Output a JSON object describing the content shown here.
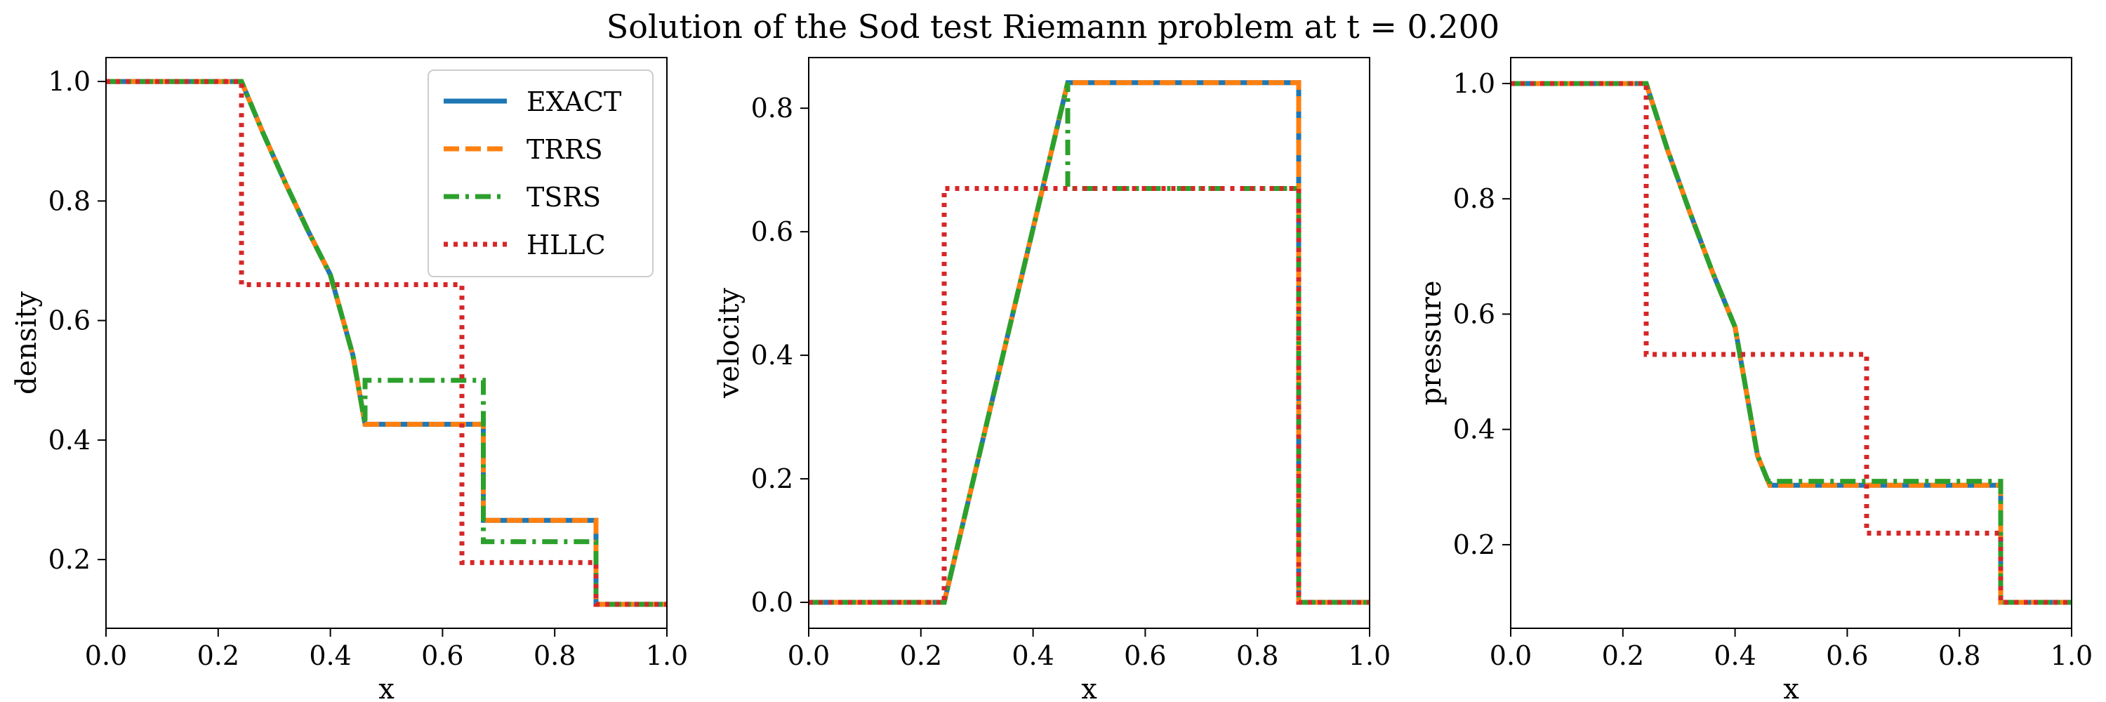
{
  "figure": {
    "title": "Solution of the Sod test Riemann problem at t = 0.200"
  },
  "chart_data": [
    {
      "type": "line",
      "xlabel": "x",
      "ylabel": "density",
      "xlim": [
        0.0,
        1.0
      ],
      "ylim": [
        0.085,
        1.04
      ],
      "xticks": [
        "0.0",
        "0.2",
        "0.4",
        "0.6",
        "0.8",
        "1.0"
      ],
      "yticks": [
        "0.2",
        "0.4",
        "0.6",
        "0.8",
        "1.0"
      ],
      "legend": {
        "location": "upper right",
        "entries": [
          "EXACT",
          "TRRS",
          "TSRS",
          "HLLC"
        ]
      },
      "grid": false,
      "series": [
        {
          "name": "EXACT",
          "color": "#1f77b4",
          "style": "solid",
          "x": [
            0.0,
            0.2415,
            0.28,
            0.32,
            0.36,
            0.4,
            0.44,
            0.4618,
            0.6727,
            0.6727,
            0.8736,
            0.8736,
            1.0
          ],
          "y": [
            1.0,
            1.0,
            0.9139,
            0.8297,
            0.7506,
            0.6766,
            0.5425,
            0.4263,
            0.4263,
            0.2656,
            0.2656,
            0.125,
            0.125
          ]
        },
        {
          "name": "TRRS",
          "color": "#ff7f0e",
          "style": "dashed",
          "x": [
            0.0,
            0.2415,
            0.28,
            0.32,
            0.36,
            0.4,
            0.44,
            0.4618,
            0.6727,
            0.6727,
            0.8736,
            0.8736,
            1.0
          ],
          "y": [
            1.0,
            1.0,
            0.9139,
            0.8297,
            0.7506,
            0.6766,
            0.5425,
            0.4263,
            0.4263,
            0.2656,
            0.2656,
            0.125,
            0.125
          ]
        },
        {
          "name": "TSRS",
          "color": "#2ca02c",
          "style": "dashdot",
          "x": [
            0.0,
            0.2415,
            0.28,
            0.32,
            0.36,
            0.4,
            0.44,
            0.4618,
            0.4618,
            0.6727,
            0.6727,
            0.8736,
            0.8736,
            1.0
          ],
          "y": [
            1.0,
            1.0,
            0.9139,
            0.8297,
            0.7506,
            0.6766,
            0.5425,
            0.4263,
            0.5,
            0.5,
            0.23,
            0.23,
            0.125,
            0.125
          ]
        },
        {
          "name": "HLLC",
          "color": "#d62728",
          "style": "dotted",
          "x": [
            0.0,
            0.2415,
            0.2415,
            0.6345,
            0.6345,
            0.8736,
            0.8736,
            1.0
          ],
          "y": [
            1.0,
            1.0,
            0.66,
            0.66,
            0.195,
            0.195,
            0.125,
            0.125
          ]
        }
      ]
    },
    {
      "type": "line",
      "xlabel": "x",
      "ylabel": "velocity",
      "xlim": [
        0.0,
        1.0
      ],
      "ylim": [
        -0.042,
        0.882
      ],
      "xticks": [
        "0.0",
        "0.2",
        "0.4",
        "0.6",
        "0.8",
        "1.0"
      ],
      "yticks": [
        "0.0",
        "0.2",
        "0.4",
        "0.6",
        "0.8"
      ],
      "legend": null,
      "grid": false,
      "series": [
        {
          "name": "EXACT",
          "color": "#1f77b4",
          "style": "solid",
          "x": [
            0.0,
            0.2415,
            0.4618,
            0.8736,
            0.8736,
            1.0
          ],
          "y": [
            0.0,
            0.0,
            0.8413,
            0.8413,
            0.0,
            0.0
          ]
        },
        {
          "name": "TRRS",
          "color": "#ff7f0e",
          "style": "dashed",
          "x": [
            0.0,
            0.2415,
            0.4618,
            0.8736,
            0.8736,
            1.0
          ],
          "y": [
            0.0,
            0.0,
            0.8413,
            0.8413,
            0.0,
            0.0
          ]
        },
        {
          "name": "TSRS",
          "color": "#2ca02c",
          "style": "dashdot",
          "x": [
            0.0,
            0.2415,
            0.4618,
            0.4618,
            0.8736,
            0.8736,
            1.0
          ],
          "y": [
            0.0,
            0.0,
            0.8413,
            0.67,
            0.67,
            0.0,
            0.0
          ]
        },
        {
          "name": "HLLC",
          "color": "#d62728",
          "style": "dotted",
          "x": [
            0.0,
            0.2415,
            0.2415,
            0.8736,
            0.8736,
            1.0
          ],
          "y": [
            0.0,
            0.0,
            0.67,
            0.67,
            0.0,
            0.0
          ]
        }
      ]
    },
    {
      "type": "line",
      "xlabel": "x",
      "ylabel": "pressure",
      "xlim": [
        0.0,
        1.0
      ],
      "ylim": [
        0.055,
        1.045
      ],
      "xticks": [
        "0.0",
        "0.2",
        "0.4",
        "0.6",
        "0.8",
        "1.0"
      ],
      "yticks": [
        "0.2",
        "0.4",
        "0.6",
        "0.8",
        "1.0"
      ],
      "legend": null,
      "grid": false,
      "series": [
        {
          "name": "EXACT",
          "color": "#1f77b4",
          "style": "solid",
          "x": [
            0.0,
            0.2415,
            0.28,
            0.32,
            0.36,
            0.4,
            0.44,
            0.4618,
            0.8736,
            0.8736,
            1.0
          ],
          "y": [
            1.0,
            1.0,
            0.884,
            0.775,
            0.6722,
            0.5775,
            0.3545,
            0.3031,
            0.3031,
            0.1,
            0.1
          ]
        },
        {
          "name": "TRRS",
          "color": "#ff7f0e",
          "style": "dashed",
          "x": [
            0.0,
            0.2415,
            0.28,
            0.32,
            0.36,
            0.4,
            0.44,
            0.4618,
            0.8736,
            0.8736,
            1.0
          ],
          "y": [
            1.0,
            1.0,
            0.884,
            0.775,
            0.6722,
            0.5775,
            0.3545,
            0.3031,
            0.3031,
            0.1,
            0.1
          ]
        },
        {
          "name": "TSRS",
          "color": "#2ca02c",
          "style": "dashdot",
          "x": [
            0.0,
            0.2415,
            0.28,
            0.32,
            0.36,
            0.4,
            0.44,
            0.4618,
            0.4618,
            0.8736,
            0.8736,
            1.0
          ],
          "y": [
            1.0,
            1.0,
            0.884,
            0.775,
            0.6722,
            0.5775,
            0.3545,
            0.3031,
            0.31,
            0.31,
            0.1,
            0.1
          ]
        },
        {
          "name": "HLLC",
          "color": "#d62728",
          "style": "dotted",
          "x": [
            0.0,
            0.2415,
            0.2415,
            0.6345,
            0.6345,
            0.8736,
            0.8736,
            1.0
          ],
          "y": [
            1.0,
            1.0,
            0.53,
            0.53,
            0.22,
            0.22,
            0.1,
            0.1
          ]
        }
      ]
    }
  ]
}
